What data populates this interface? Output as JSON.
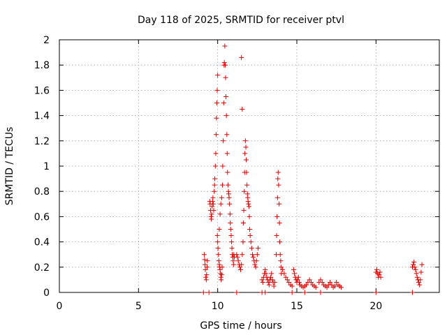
{
  "chart_data": {
    "type": "scatter",
    "title": "Day 118 of 2025, SRMTID for receiver ptvl",
    "xlabel": "GPS time / hours",
    "ylabel": "SRMTID / TECUs",
    "xlim": [
      0,
      24
    ],
    "ylim": [
      0,
      2
    ],
    "xticks": [
      0,
      5,
      10,
      15,
      20
    ],
    "yticks": [
      0,
      0.2,
      0.4,
      0.6,
      0.8,
      1,
      1.2,
      1.4,
      1.6,
      1.8,
      2
    ],
    "grid": true,
    "marker": "plus",
    "series_color": "#e00000",
    "points": [
      [
        9.15,
        0.3
      ],
      [
        9.18,
        0.26
      ],
      [
        9.2,
        0.22
      ],
      [
        9.22,
        0.18
      ],
      [
        9.25,
        0.12
      ],
      [
        9.28,
        0.1
      ],
      [
        9.3,
        0.14
      ],
      [
        9.33,
        0.2
      ],
      [
        9.35,
        0.25
      ],
      [
        9.5,
        0.72
      ],
      [
        9.52,
        0.7
      ],
      [
        9.55,
        0.65
      ],
      [
        9.58,
        0.6
      ],
      [
        9.6,
        0.58
      ],
      [
        9.62,
        0.62
      ],
      [
        9.65,
        0.68
      ],
      [
        9.68,
        0.72
      ],
      [
        9.7,
        0.75
      ],
      [
        9.72,
        0.7
      ],
      [
        9.75,
        0.65
      ],
      [
        9.78,
        0.8
      ],
      [
        9.8,
        0.85
      ],
      [
        9.82,
        0.9
      ],
      [
        9.85,
        1.0
      ],
      [
        9.88,
        1.1
      ],
      [
        9.9,
        1.25
      ],
      [
        9.92,
        1.38
      ],
      [
        9.95,
        1.5
      ],
      [
        9.97,
        1.6
      ],
      [
        10.0,
        1.72
      ],
      [
        9.98,
        0.45
      ],
      [
        10.0,
        0.4
      ],
      [
        10.02,
        0.35
      ],
      [
        10.05,
        0.3
      ],
      [
        10.08,
        0.25
      ],
      [
        10.1,
        0.22
      ],
      [
        10.12,
        0.2
      ],
      [
        10.15,
        0.18
      ],
      [
        10.18,
        0.15
      ],
      [
        10.2,
        0.12
      ],
      [
        10.22,
        0.1
      ],
      [
        10.25,
        0.14
      ],
      [
        10.28,
        0.2
      ],
      [
        10.1,
        0.5
      ],
      [
        10.15,
        0.62
      ],
      [
        10.2,
        0.7
      ],
      [
        10.25,
        0.75
      ],
      [
        10.3,
        0.85
      ],
      [
        10.32,
        1.0
      ],
      [
        10.35,
        1.2
      ],
      [
        10.38,
        1.5
      ],
      [
        10.4,
        1.8
      ],
      [
        10.42,
        1.82
      ],
      [
        10.45,
        1.95
      ],
      [
        10.48,
        1.8
      ],
      [
        10.5,
        1.7
      ],
      [
        10.52,
        1.55
      ],
      [
        10.55,
        1.4
      ],
      [
        10.58,
        1.25
      ],
      [
        10.6,
        1.1
      ],
      [
        10.62,
        0.95
      ],
      [
        10.65,
        0.85
      ],
      [
        10.68,
        0.8
      ],
      [
        10.7,
        0.78
      ],
      [
        10.72,
        0.75
      ],
      [
        10.75,
        0.7
      ],
      [
        10.78,
        0.62
      ],
      [
        10.8,
        0.55
      ],
      [
        10.82,
        0.5
      ],
      [
        10.85,
        0.45
      ],
      [
        10.88,
        0.4
      ],
      [
        10.9,
        0.35
      ],
      [
        10.92,
        0.3
      ],
      [
        10.95,
        0.28
      ],
      [
        10.98,
        0.25
      ],
      [
        11.0,
        0.22
      ],
      [
        11.02,
        0.3
      ],
      [
        11.05,
        0.28
      ],
      [
        11.2,
        0.3
      ],
      [
        11.25,
        0.28
      ],
      [
        11.3,
        0.25
      ],
      [
        11.35,
        0.22
      ],
      [
        11.4,
        0.2
      ],
      [
        11.45,
        0.18
      ],
      [
        11.5,
        0.22
      ],
      [
        11.55,
        0.3
      ],
      [
        11.6,
        0.4
      ],
      [
        11.62,
        0.55
      ],
      [
        11.65,
        0.65
      ],
      [
        11.68,
        0.8
      ],
      [
        11.7,
        0.95
      ],
      [
        11.72,
        1.1
      ],
      [
        11.75,
        1.2
      ],
      [
        11.78,
        1.15
      ],
      [
        11.8,
        1.05
      ],
      [
        11.82,
        0.95
      ],
      [
        11.85,
        0.85
      ],
      [
        11.88,
        0.78
      ],
      [
        11.9,
        0.75
      ],
      [
        11.92,
        0.72
      ],
      [
        11.95,
        0.7
      ],
      [
        11.98,
        0.68
      ],
      [
        12.0,
        0.6
      ],
      [
        12.02,
        0.5
      ],
      [
        11.5,
        1.86
      ],
      [
        11.55,
        1.45
      ],
      [
        12.05,
        0.45
      ],
      [
        12.1,
        0.4
      ],
      [
        12.15,
        0.35
      ],
      [
        12.2,
        0.3
      ],
      [
        12.25,
        0.28
      ],
      [
        12.3,
        0.25
      ],
      [
        12.35,
        0.22
      ],
      [
        12.4,
        0.2
      ],
      [
        12.45,
        0.25
      ],
      [
        12.5,
        0.3
      ],
      [
        12.55,
        0.35
      ],
      [
        12.8,
        0.1
      ],
      [
        12.85,
        0.08
      ],
      [
        12.9,
        0.12
      ],
      [
        12.95,
        0.15
      ],
      [
        13.0,
        0.18
      ],
      [
        13.05,
        0.15
      ],
      [
        13.1,
        0.12
      ],
      [
        13.15,
        0.1
      ],
      [
        13.2,
        0.08
      ],
      [
        13.25,
        0.06
      ],
      [
        13.3,
        0.1
      ],
      [
        13.35,
        0.12
      ],
      [
        13.4,
        0.15
      ],
      [
        13.45,
        0.1
      ],
      [
        13.5,
        0.08
      ],
      [
        13.55,
        0.05
      ],
      [
        13.6,
        0.08
      ],
      [
        13.7,
        0.3
      ],
      [
        13.72,
        0.45
      ],
      [
        13.75,
        0.6
      ],
      [
        13.78,
        0.75
      ],
      [
        13.8,
        0.9
      ],
      [
        13.82,
        0.95
      ],
      [
        13.85,
        0.85
      ],
      [
        13.88,
        0.7
      ],
      [
        13.9,
        0.55
      ],
      [
        13.92,
        0.4
      ],
      [
        13.95,
        0.3
      ],
      [
        13.98,
        0.25
      ],
      [
        14.0,
        0.2
      ],
      [
        14.02,
        0.15
      ],
      [
        14.1,
        0.18
      ],
      [
        14.2,
        0.15
      ],
      [
        14.3,
        0.12
      ],
      [
        14.4,
        0.1
      ],
      [
        14.5,
        0.08
      ],
      [
        14.6,
        0.06
      ],
      [
        14.7,
        0.05
      ],
      [
        14.8,
        0.18
      ],
      [
        14.85,
        0.15
      ],
      [
        14.9,
        0.12
      ],
      [
        14.95,
        0.1
      ],
      [
        15.0,
        0.08
      ],
      [
        15.05,
        0.1
      ],
      [
        15.1,
        0.12
      ],
      [
        15.15,
        0.08
      ],
      [
        15.2,
        0.06
      ],
      [
        15.3,
        0.05
      ],
      [
        15.4,
        0.04
      ],
      [
        15.5,
        0.05
      ],
      [
        15.6,
        0.06
      ],
      [
        15.7,
        0.08
      ],
      [
        15.8,
        0.1
      ],
      [
        15.9,
        0.08
      ],
      [
        16.0,
        0.06
      ],
      [
        16.1,
        0.05
      ],
      [
        16.2,
        0.04
      ],
      [
        16.4,
        0.08
      ],
      [
        16.5,
        0.1
      ],
      [
        16.6,
        0.08
      ],
      [
        16.7,
        0.06
      ],
      [
        16.8,
        0.05
      ],
      [
        16.9,
        0.04
      ],
      [
        17.0,
        0.06
      ],
      [
        17.1,
        0.08
      ],
      [
        17.2,
        0.06
      ],
      [
        17.3,
        0.04
      ],
      [
        17.4,
        0.05
      ],
      [
        17.5,
        0.08
      ],
      [
        17.6,
        0.06
      ],
      [
        17.7,
        0.05
      ],
      [
        17.8,
        0.04
      ],
      [
        20.0,
        0.16
      ],
      [
        20.05,
        0.18
      ],
      [
        20.1,
        0.15
      ],
      [
        20.15,
        0.12
      ],
      [
        20.2,
        0.14
      ],
      [
        20.25,
        0.16
      ],
      [
        20.3,
        0.12
      ],
      [
        22.3,
        0.2
      ],
      [
        22.35,
        0.22
      ],
      [
        22.4,
        0.24
      ],
      [
        22.45,
        0.2
      ],
      [
        22.5,
        0.18
      ],
      [
        22.55,
        0.15
      ],
      [
        22.6,
        0.12
      ],
      [
        22.65,
        0.1
      ],
      [
        22.7,
        0.08
      ],
      [
        22.75,
        0.06
      ],
      [
        22.8,
        0.1
      ],
      [
        22.85,
        0.16
      ],
      [
        22.9,
        0.22
      ],
      [
        9.1,
        0.0
      ],
      [
        9.45,
        0.0
      ],
      [
        11.2,
        0.0
      ],
      [
        12.8,
        0.0
      ],
      [
        13.0,
        0.0
      ],
      [
        14.7,
        0.0
      ],
      [
        15.5,
        0.0
      ],
      [
        16.5,
        0.0
      ],
      [
        20.0,
        0.0
      ],
      [
        22.3,
        0.0
      ]
    ]
  }
}
